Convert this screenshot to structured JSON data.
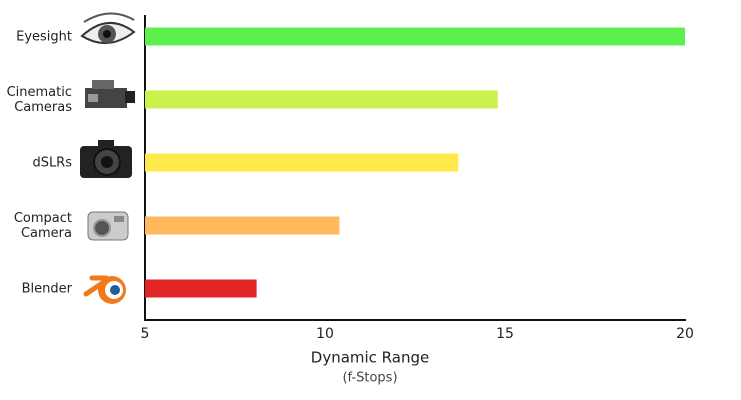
{
  "chart_data": {
    "type": "bar",
    "orientation": "horizontal",
    "categories": [
      "Eyesight",
      "Cinematic Cameras",
      "dSLRs",
      "Compact Camera",
      "Blender"
    ],
    "values": [
      20,
      14.8,
      13.7,
      10.4,
      8.1
    ],
    "colors": [
      "#5cf04c",
      "#c9f34c",
      "#ffe94a",
      "#ffb95c",
      "#e22626"
    ],
    "xlim": [
      5,
      20
    ],
    "xticks": [
      5,
      10,
      15,
      20
    ],
    "x_label": "Dynamic Range",
    "x_label_note": "(f-Stops)"
  }
}
